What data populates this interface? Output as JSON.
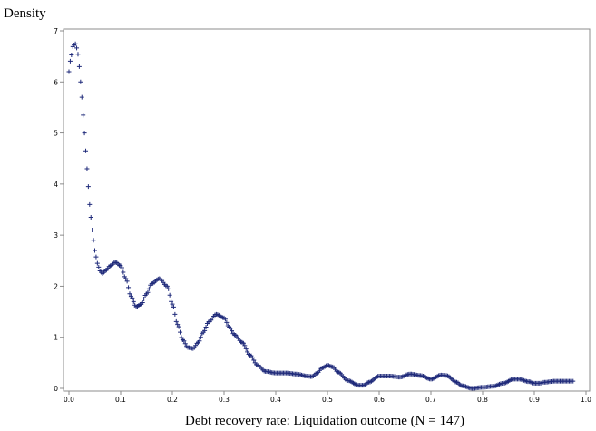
{
  "chart_data": {
    "type": "scatter",
    "title": "",
    "xlabel": "Debt recovery rate: Liquidation outcome (N = 147)",
    "ylabel": "Density",
    "xlim": [
      0.0,
      1.0
    ],
    "ylim": [
      0,
      7
    ],
    "x_ticks": [
      "0.0",
      "0.1",
      "0.2",
      "0.3",
      "0.4",
      "0.5",
      "0.6",
      "0.7",
      "0.8",
      "0.9",
      "1.0"
    ],
    "y_ticks": [
      "0",
      "1",
      "2",
      "3",
      "4",
      "5",
      "6",
      "7"
    ],
    "marker": "plus",
    "marker_color": "#1f2a7a",
    "grid": false,
    "legend": "none",
    "curve_knots": [
      [
        0.0,
        6.2
      ],
      [
        0.004,
        6.5
      ],
      [
        0.008,
        6.7
      ],
      [
        0.012,
        6.75
      ],
      [
        0.016,
        6.65
      ],
      [
        0.02,
        6.3
      ],
      [
        0.025,
        5.7
      ],
      [
        0.03,
        5.0
      ],
      [
        0.035,
        4.3
      ],
      [
        0.04,
        3.6
      ],
      [
        0.045,
        3.1
      ],
      [
        0.05,
        2.7
      ],
      [
        0.055,
        2.45
      ],
      [
        0.06,
        2.3
      ],
      [
        0.065,
        2.25
      ],
      [
        0.07,
        2.3
      ],
      [
        0.08,
        2.4
      ],
      [
        0.09,
        2.47
      ],
      [
        0.1,
        2.4
      ],
      [
        0.11,
        2.15
      ],
      [
        0.12,
        1.8
      ],
      [
        0.13,
        1.6
      ],
      [
        0.14,
        1.65
      ],
      [
        0.15,
        1.85
      ],
      [
        0.16,
        2.05
      ],
      [
        0.175,
        2.15
      ],
      [
        0.19,
        2.0
      ],
      [
        0.2,
        1.65
      ],
      [
        0.21,
        1.25
      ],
      [
        0.22,
        0.95
      ],
      [
        0.23,
        0.8
      ],
      [
        0.24,
        0.78
      ],
      [
        0.25,
        0.9
      ],
      [
        0.26,
        1.1
      ],
      [
        0.27,
        1.3
      ],
      [
        0.285,
        1.45
      ],
      [
        0.3,
        1.38
      ],
      [
        0.31,
        1.2
      ],
      [
        0.32,
        1.05
      ],
      [
        0.335,
        0.9
      ],
      [
        0.35,
        0.65
      ],
      [
        0.365,
        0.45
      ],
      [
        0.38,
        0.33
      ],
      [
        0.4,
        0.3
      ],
      [
        0.42,
        0.3
      ],
      [
        0.44,
        0.28
      ],
      [
        0.46,
        0.24
      ],
      [
        0.47,
        0.23
      ],
      [
        0.48,
        0.3
      ],
      [
        0.49,
        0.4
      ],
      [
        0.5,
        0.45
      ],
      [
        0.51,
        0.42
      ],
      [
        0.52,
        0.32
      ],
      [
        0.54,
        0.15
      ],
      [
        0.56,
        0.06
      ],
      [
        0.57,
        0.06
      ],
      [
        0.58,
        0.12
      ],
      [
        0.6,
        0.24
      ],
      [
        0.62,
        0.24
      ],
      [
        0.64,
        0.22
      ],
      [
        0.66,
        0.28
      ],
      [
        0.68,
        0.25
      ],
      [
        0.7,
        0.18
      ],
      [
        0.72,
        0.26
      ],
      [
        0.73,
        0.25
      ],
      [
        0.75,
        0.12
      ],
      [
        0.76,
        0.05
      ],
      [
        0.78,
        0.0
      ],
      [
        0.8,
        0.02
      ],
      [
        0.82,
        0.04
      ],
      [
        0.84,
        0.1
      ],
      [
        0.86,
        0.18
      ],
      [
        0.87,
        0.18
      ],
      [
        0.89,
        0.13
      ],
      [
        0.9,
        0.1
      ],
      [
        0.91,
        0.1
      ],
      [
        0.92,
        0.12
      ],
      [
        0.94,
        0.14
      ],
      [
        0.96,
        0.14
      ],
      [
        0.975,
        0.14
      ]
    ]
  }
}
